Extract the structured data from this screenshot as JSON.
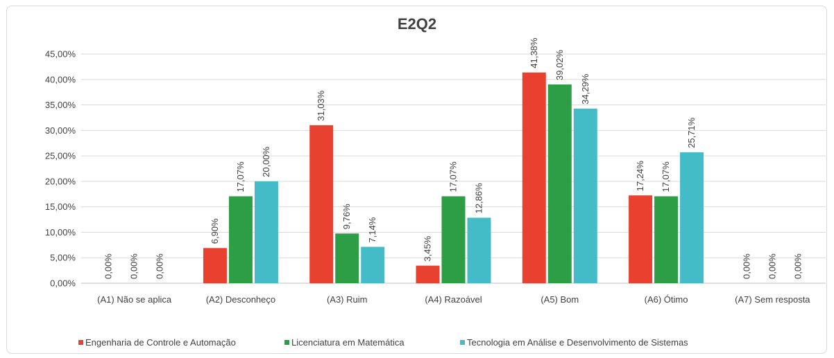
{
  "chart_data": {
    "type": "bar",
    "title": "E2Q2",
    "xlabel": "",
    "ylabel": "",
    "ylim": [
      0,
      45
    ],
    "yticks": [
      "0,00%",
      "5,00%",
      "10,00%",
      "15,00%",
      "20,00%",
      "25,00%",
      "30,00%",
      "35,00%",
      "40,00%",
      "45,00%"
    ],
    "grid": true,
    "legend_position": "bottom",
    "categories": [
      "(A1) Não se aplica",
      "(A2) Desconheço",
      "(A3) Ruim",
      "(A4) Razoável",
      "(A5) Bom",
      "(A6) Ótimo",
      "(A7) Sem resposta"
    ],
    "series": [
      {
        "name": "Engenharia de Controle e Automação",
        "color": "#e8412f",
        "values": [
          0,
          6.9,
          31.03,
          3.45,
          41.38,
          17.24,
          0
        ],
        "labels": [
          "0,00%",
          "6,90%",
          "31,03%",
          "3,45%",
          "41,38%",
          "17,24%",
          "0,00%"
        ]
      },
      {
        "name": "Licenciatura em Matemática",
        "color": "#2e9e46",
        "values": [
          0,
          17.07,
          9.76,
          17.07,
          39.02,
          17.07,
          0
        ],
        "labels": [
          "0,00%",
          "17,07%",
          "9,76%",
          "17,07%",
          "39,02%",
          "17,07%",
          "0,00%"
        ]
      },
      {
        "name": "Tecnologia em Análise e Desenvolvimento de Sistemas",
        "color": "#43bcc8",
        "values": [
          0,
          20.0,
          7.14,
          12.86,
          34.29,
          25.71,
          0
        ],
        "labels": [
          "0,00%",
          "20,00%",
          "7,14%",
          "12,86%",
          "34,29%",
          "25,71%",
          "0,00%"
        ]
      }
    ]
  }
}
